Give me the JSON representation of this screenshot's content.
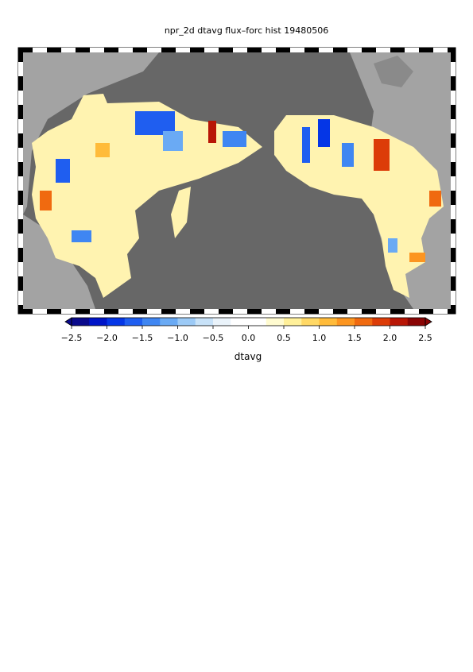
{
  "title": "npr_2d dtavg flux–forc hist 19480506",
  "colorbar": {
    "label": "dtavg",
    "lim": [
      -2.5,
      2.5
    ],
    "ticks": [
      {
        "value": -2.5,
        "label": "−2.5"
      },
      {
        "value": -2.0,
        "label": "−2.0"
      },
      {
        "value": -1.5,
        "label": "−1.5"
      },
      {
        "value": -1.0,
        "label": "−1.0"
      },
      {
        "value": -0.5,
        "label": "−0.5"
      },
      {
        "value": 0.0,
        "label": "0.0"
      },
      0.5,
      {
        "value": 1.0,
        "label": "1.0"
      },
      1.5,
      {
        "value": 2.0,
        "label": "2.0"
      },
      2.5
    ],
    "colors": [
      "#0a0a8c",
      "#0015c8",
      "#0536e6",
      "#1f5ef0",
      "#3f86f2",
      "#6aaaf4",
      "#9ccaf6",
      "#c8e2f8",
      "#eaf3fa",
      "#ffffff",
      "#ffffff",
      "#fffbd0",
      "#fff09a",
      "#ffd865",
      "#ffbb3a",
      "#fc9520",
      "#f06a10",
      "#dc3c08",
      "#b81606",
      "#8a0505"
    ]
  }
}
